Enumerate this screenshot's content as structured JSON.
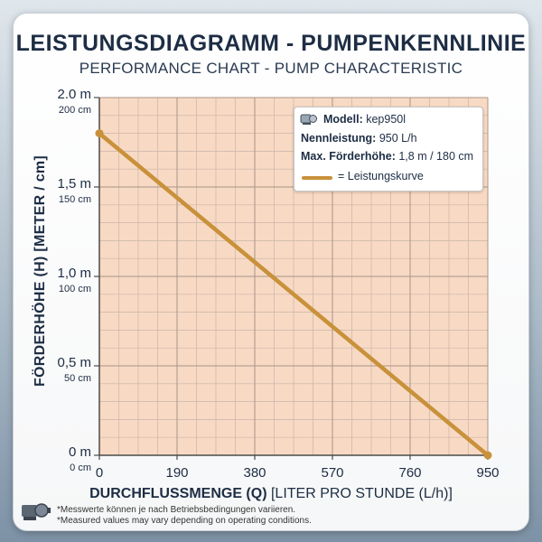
{
  "header": {
    "title": "LEISTUNGSDIAGRAMM - PUMPENKENNLINIE",
    "subtitle": "PERFORMANCE CHART - PUMP CHARACTERISTIC"
  },
  "legend_box": {
    "model_label": "Modell:",
    "model_value": "kep950l",
    "power_label": "Nennleistung:",
    "power_value": "950 L/h",
    "head_label": "Max. Förderhöhe:",
    "head_value": "1,8 m / 180 cm",
    "curve_label": "= Leistungskurve",
    "icon": "pump-icon"
  },
  "axes": {
    "ylabel": "FÖRDERHÖHE (H) [METER / cm]",
    "xlabel_bold": "DURCHFLUSSMENGE (Q)",
    "xlabel_rest": " [LITER PRO STUNDE (L/h)]"
  },
  "footnotes": {
    "line1": "*Messwerte können je nach Betriebsbedingungen variieren.",
    "line2": "*Measured values may vary depending on operating conditions.",
    "icon": "pump-icon"
  },
  "colors": {
    "plot_bg": "#f8d9c4",
    "grid": "#c9b6a8",
    "curve": "#c8913a",
    "title": "#1d2d44"
  },
  "chart_data": {
    "type": "line",
    "title": "LEISTUNGSDIAGRAMM - PUMPENKENNLINIE",
    "subtitle": "PERFORMANCE CHART - PUMP CHARACTERISTIC",
    "xlabel": "DURCHFLUSSMENGE (Q) [LITER PRO STUNDE (L/h)]",
    "ylabel": "FÖRDERHÖHE (H) [METER / cm]",
    "xlim": [
      0,
      950
    ],
    "ylim": [
      0,
      2.0
    ],
    "x_ticks": [
      {
        "value": 0,
        "label": "0"
      },
      {
        "value": 190,
        "label": "190"
      },
      {
        "value": 380,
        "label": "380"
      },
      {
        "value": 570,
        "label": "570"
      },
      {
        "value": 760,
        "label": "760"
      },
      {
        "value": 950,
        "label": "950"
      }
    ],
    "y_ticks": [
      {
        "value": 0,
        "label": "0 m",
        "sublabel": "0 cm"
      },
      {
        "value": 0.5,
        "label": "0,5 m",
        "sublabel": "50 cm"
      },
      {
        "value": 1.0,
        "label": "1,0 m",
        "sublabel": "100 cm"
      },
      {
        "value": 1.5,
        "label": "1,5 m",
        "sublabel": "150 cm"
      },
      {
        "value": 2.0,
        "label": "2.0 m",
        "sublabel": "200 cm"
      }
    ],
    "grid": true,
    "grid_x_step": 47.5,
    "grid_y_step": 0.1,
    "legend_position": "top-right",
    "series": [
      {
        "name": "Leistungskurve",
        "color": "#c8913a",
        "x": [
          0,
          950
        ],
        "y": [
          1.8,
          0
        ]
      }
    ]
  }
}
